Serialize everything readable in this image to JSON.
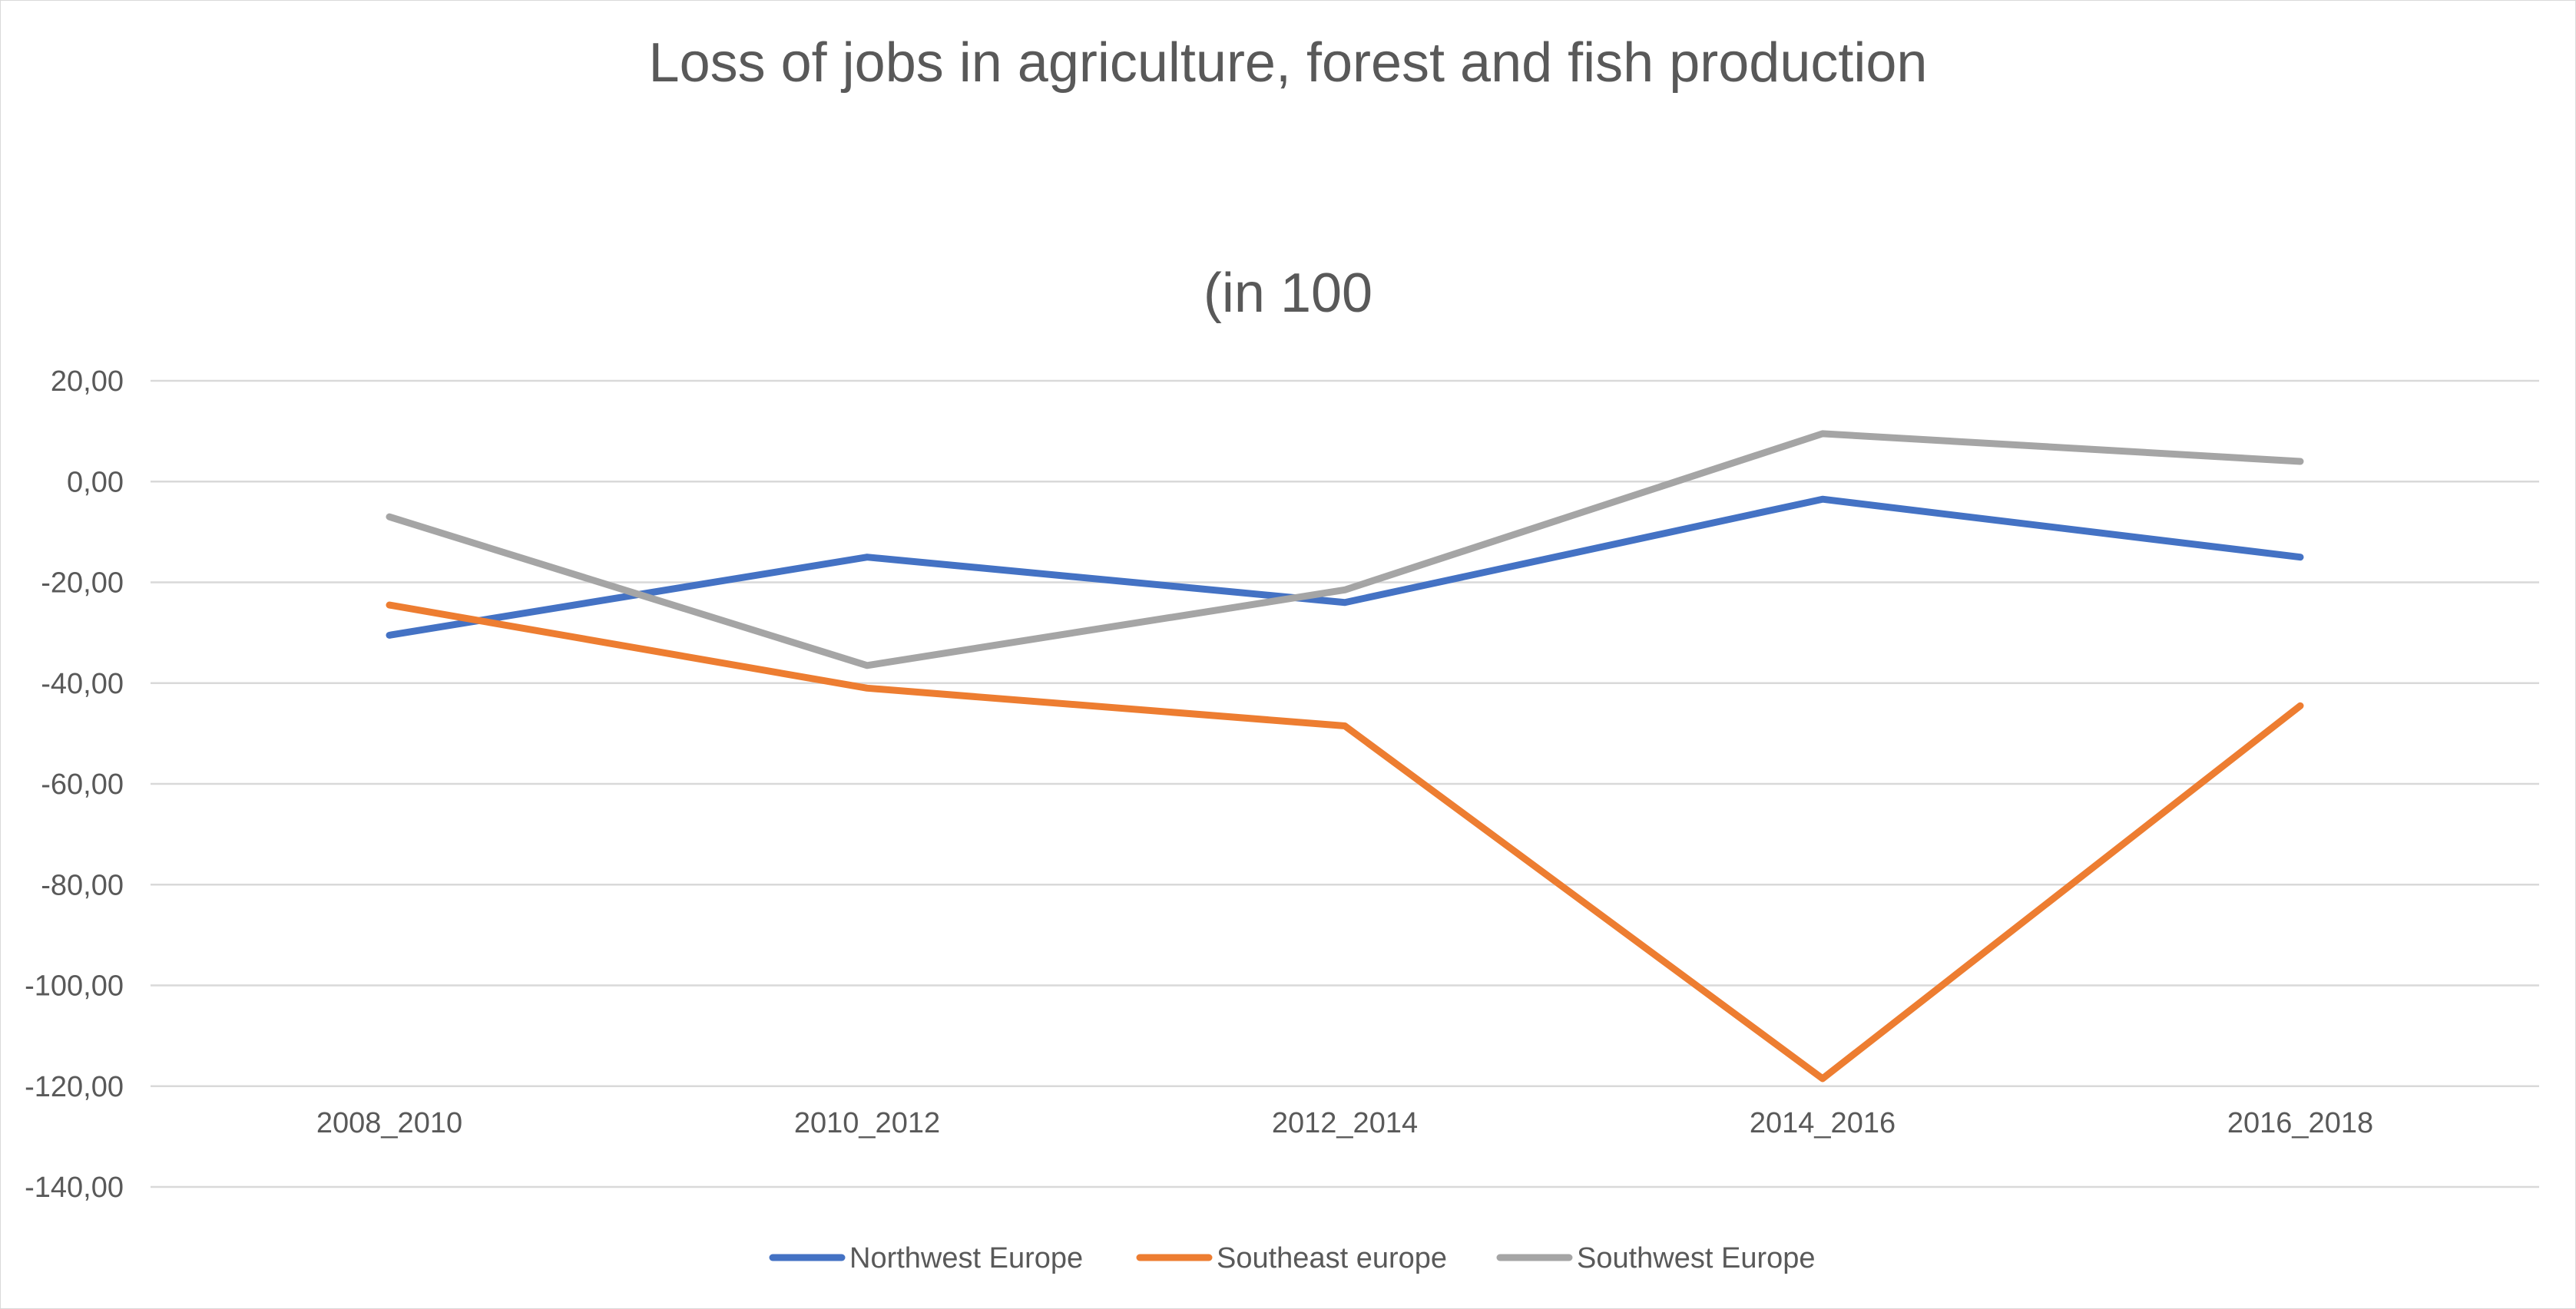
{
  "chart_data": {
    "type": "line",
    "title_lines": [
      "Loss of jobs in agriculture, forest and fish production",
      "(in 100"
    ],
    "xlabel": "",
    "ylabel": "",
    "categories": [
      "2008_2010",
      "2010_2012",
      "2012_2014",
      "2014_2016",
      "2016_2018"
    ],
    "series": [
      {
        "name": "Northwest Europe",
        "values": [
          -30.5,
          -15.0,
          -24.0,
          -3.5,
          -15.0
        ],
        "color": "#4472C4"
      },
      {
        "name": "Southeast europe",
        "values": [
          -24.5,
          -41.0,
          -48.5,
          -118.5,
          -44.5
        ],
        "color": "#ED7D31"
      },
      {
        "name": "Southwest Europe",
        "values": [
          -7.0,
          -36.5,
          -21.5,
          9.5,
          4.0
        ],
        "color": "#A5A5A5"
      }
    ],
    "ylim": [
      -140,
      20
    ],
    "y_ticks": [
      20,
      0,
      -20,
      -40,
      -60,
      -80,
      -100,
      -120,
      -140
    ],
    "y_tick_labels": [
      "20,00",
      "0,00",
      "-20,00",
      "-40,00",
      "-60,00",
      "-80,00",
      "-100,00",
      "-120,00",
      "-140,00"
    ],
    "grid": true,
    "legend_position": "bottom",
    "gridline_color": "#d9d9d9",
    "text_color": "#595959"
  }
}
